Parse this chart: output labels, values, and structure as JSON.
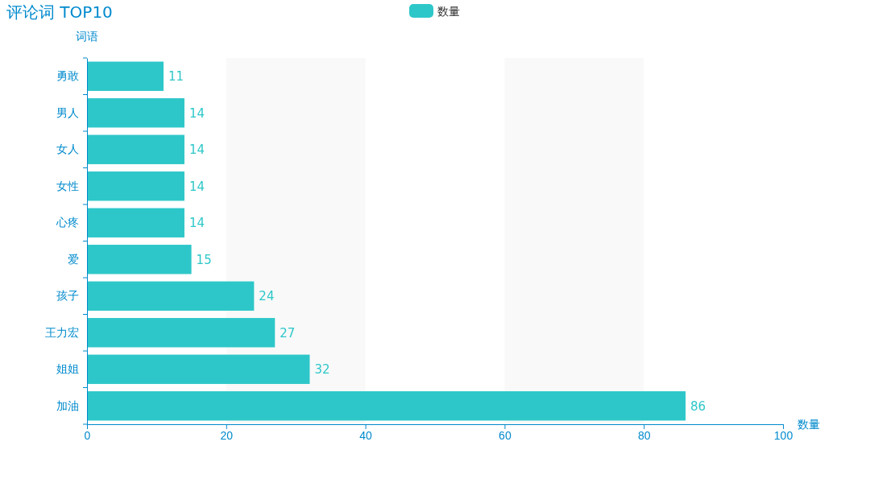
{
  "chart_data": {
    "type": "bar",
    "orientation": "horizontal",
    "title": "评论词 TOP10",
    "xlabel": "数量",
    "ylabel": "词语",
    "categories": [
      "勇敢",
      "男人",
      "女人",
      "女性",
      "心疼",
      "爱",
      "孩子",
      "王力宏",
      "姐姐",
      "加油"
    ],
    "series": [
      {
        "name": "数量",
        "color": "#2ec7c9",
        "values": [
          11,
          14,
          14,
          14,
          14,
          15,
          24,
          27,
          32,
          86
        ]
      }
    ],
    "xlim": [
      0,
      100
    ],
    "xticks": [
      0,
      20,
      40,
      60,
      80,
      100
    ],
    "data_labels": true,
    "legend": "top",
    "bands": [
      {
        "axis": "x",
        "from": 20,
        "to": 40,
        "color": "#f9f9f9"
      },
      {
        "axis": "x",
        "from": 60,
        "to": 80,
        "color": "#f9f9f9"
      }
    ]
  }
}
